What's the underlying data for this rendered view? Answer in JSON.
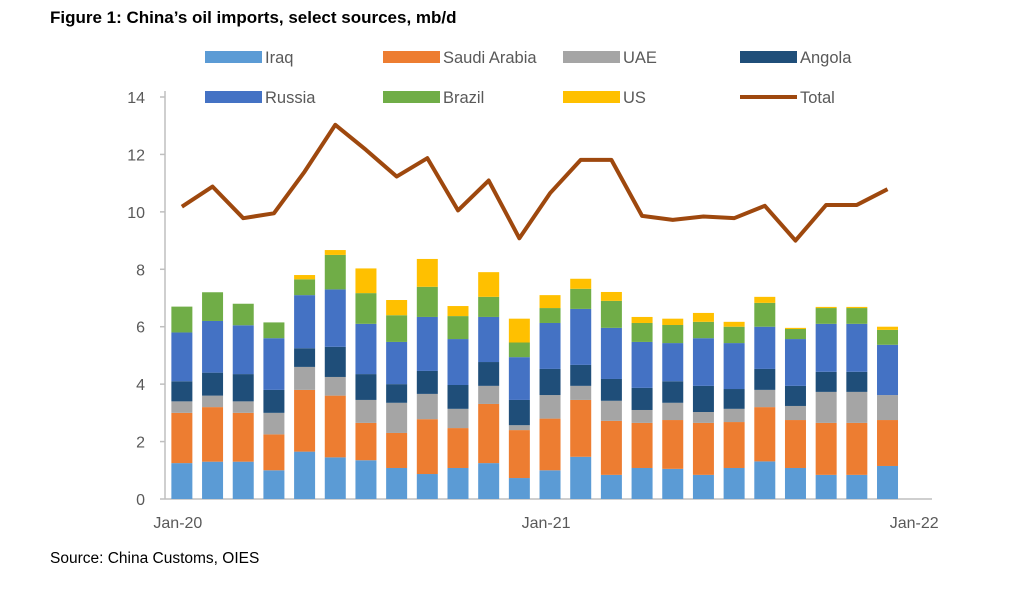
{
  "chart_data": {
    "type": "bar",
    "stacked": true,
    "title": "Figure 1: China’s oil imports, select sources, mb/d",
    "source": "Source: China Customs, OIES",
    "xlabel": "",
    "ylabel": "",
    "ylim": [
      0,
      14
    ],
    "yticks": [
      "0",
      "2",
      "4",
      "6",
      "8",
      "10",
      "12",
      "14"
    ],
    "x_tick_labels": [
      {
        "index": 0,
        "label": "Jan-20"
      },
      {
        "index": 12,
        "label": "Jan-21"
      },
      {
        "index": 24,
        "label": "Jan-22"
      }
    ],
    "categories": [
      "Jan-20",
      "Feb-20",
      "Mar-20",
      "Apr-20",
      "May-20",
      "Jun-20",
      "Jul-20",
      "Aug-20",
      "Sep-20",
      "Oct-20",
      "Nov-20",
      "Dec-20",
      "Jan-21",
      "Feb-21",
      "Mar-21",
      "Apr-21",
      "May-21",
      "Jun-21",
      "Jul-21",
      "Aug-21",
      "Sep-21",
      "Oct-21",
      "Nov-21",
      "Dec-21",
      "Jan-22"
    ],
    "grid": false,
    "legend_position": "top",
    "series": [
      {
        "name": "Iraq",
        "color": "#5b9bd5",
        "values": [
          1.25,
          1.3,
          1.3,
          1.0,
          1.65,
          1.45,
          1.35,
          1.08,
          0.87,
          1.08,
          1.25,
          0.73,
          1.0,
          1.47,
          0.84,
          1.08,
          1.05,
          0.84,
          1.08,
          1.31,
          1.08,
          0.84,
          0.84,
          1.15,
          null
        ]
      },
      {
        "name": "Saudi Arabia",
        "color": "#ed7d31",
        "values": [
          1.75,
          1.9,
          1.7,
          1.25,
          2.15,
          2.15,
          1.3,
          1.22,
          1.91,
          1.39,
          2.06,
          1.67,
          1.8,
          1.98,
          1.88,
          1.57,
          1.7,
          1.81,
          1.6,
          1.89,
          1.67,
          1.81,
          1.81,
          1.6,
          null
        ]
      },
      {
        "name": "UAE",
        "color": "#a5a5a5",
        "values": [
          0.4,
          0.4,
          0.4,
          0.75,
          0.8,
          0.65,
          0.8,
          1.05,
          0.88,
          0.67,
          0.63,
          0.17,
          0.82,
          0.49,
          0.7,
          0.45,
          0.6,
          0.38,
          0.46,
          0.6,
          0.49,
          1.08,
          1.08,
          0.87,
          null
        ]
      },
      {
        "name": "Angola",
        "color": "#1f4e79",
        "values": [
          0.7,
          0.8,
          0.95,
          0.8,
          0.65,
          1.05,
          0.9,
          0.65,
          0.8,
          0.83,
          0.83,
          0.88,
          0.91,
          0.73,
          0.76,
          0.77,
          0.75,
          0.91,
          0.69,
          0.73,
          0.7,
          0.7,
          0.7,
          0,
          null
        ]
      },
      {
        "name": "Russia",
        "color": "#4472c4",
        "values": [
          1.7,
          1.8,
          1.7,
          1.8,
          1.85,
          2.0,
          1.75,
          1.47,
          1.88,
          1.6,
          1.57,
          1.49,
          1.6,
          1.95,
          1.78,
          1.6,
          1.33,
          1.66,
          1.6,
          1.47,
          1.63,
          1.67,
          1.67,
          1.75,
          null
        ]
      },
      {
        "name": "Brazil",
        "color": "#70ad47",
        "values": [
          0.9,
          1.0,
          0.75,
          0.55,
          0.55,
          1.2,
          1.07,
          0.93,
          1.05,
          0.8,
          0.7,
          0.51,
          0.52,
          0.7,
          0.94,
          0.66,
          0.63,
          0.57,
          0.57,
          0.83,
          0.35,
          0.55,
          0.55,
          0.52,
          null
        ]
      },
      {
        "name": "US",
        "color": "#ffc000",
        "values": [
          0,
          0,
          0,
          0,
          0.15,
          0.17,
          0.86,
          0.53,
          0.97,
          0.35,
          0.86,
          0.83,
          0.45,
          0.35,
          0.31,
          0.21,
          0.22,
          0.31,
          0.17,
          0.21,
          0.04,
          0.04,
          0.04,
          0.11,
          null
        ]
      },
      {
        "name": "Total",
        "type": "line",
        "color": "#9e480e",
        "values": [
          10.18,
          10.88,
          9.78,
          9.95,
          11.4,
          13.03,
          12.16,
          11.23,
          11.87,
          10.05,
          11.09,
          9.08,
          10.65,
          11.81,
          11.81,
          9.86,
          9.72,
          9.84,
          9.78,
          10.21,
          9.0,
          10.24,
          10.24,
          10.79,
          null
        ]
      }
    ]
  }
}
